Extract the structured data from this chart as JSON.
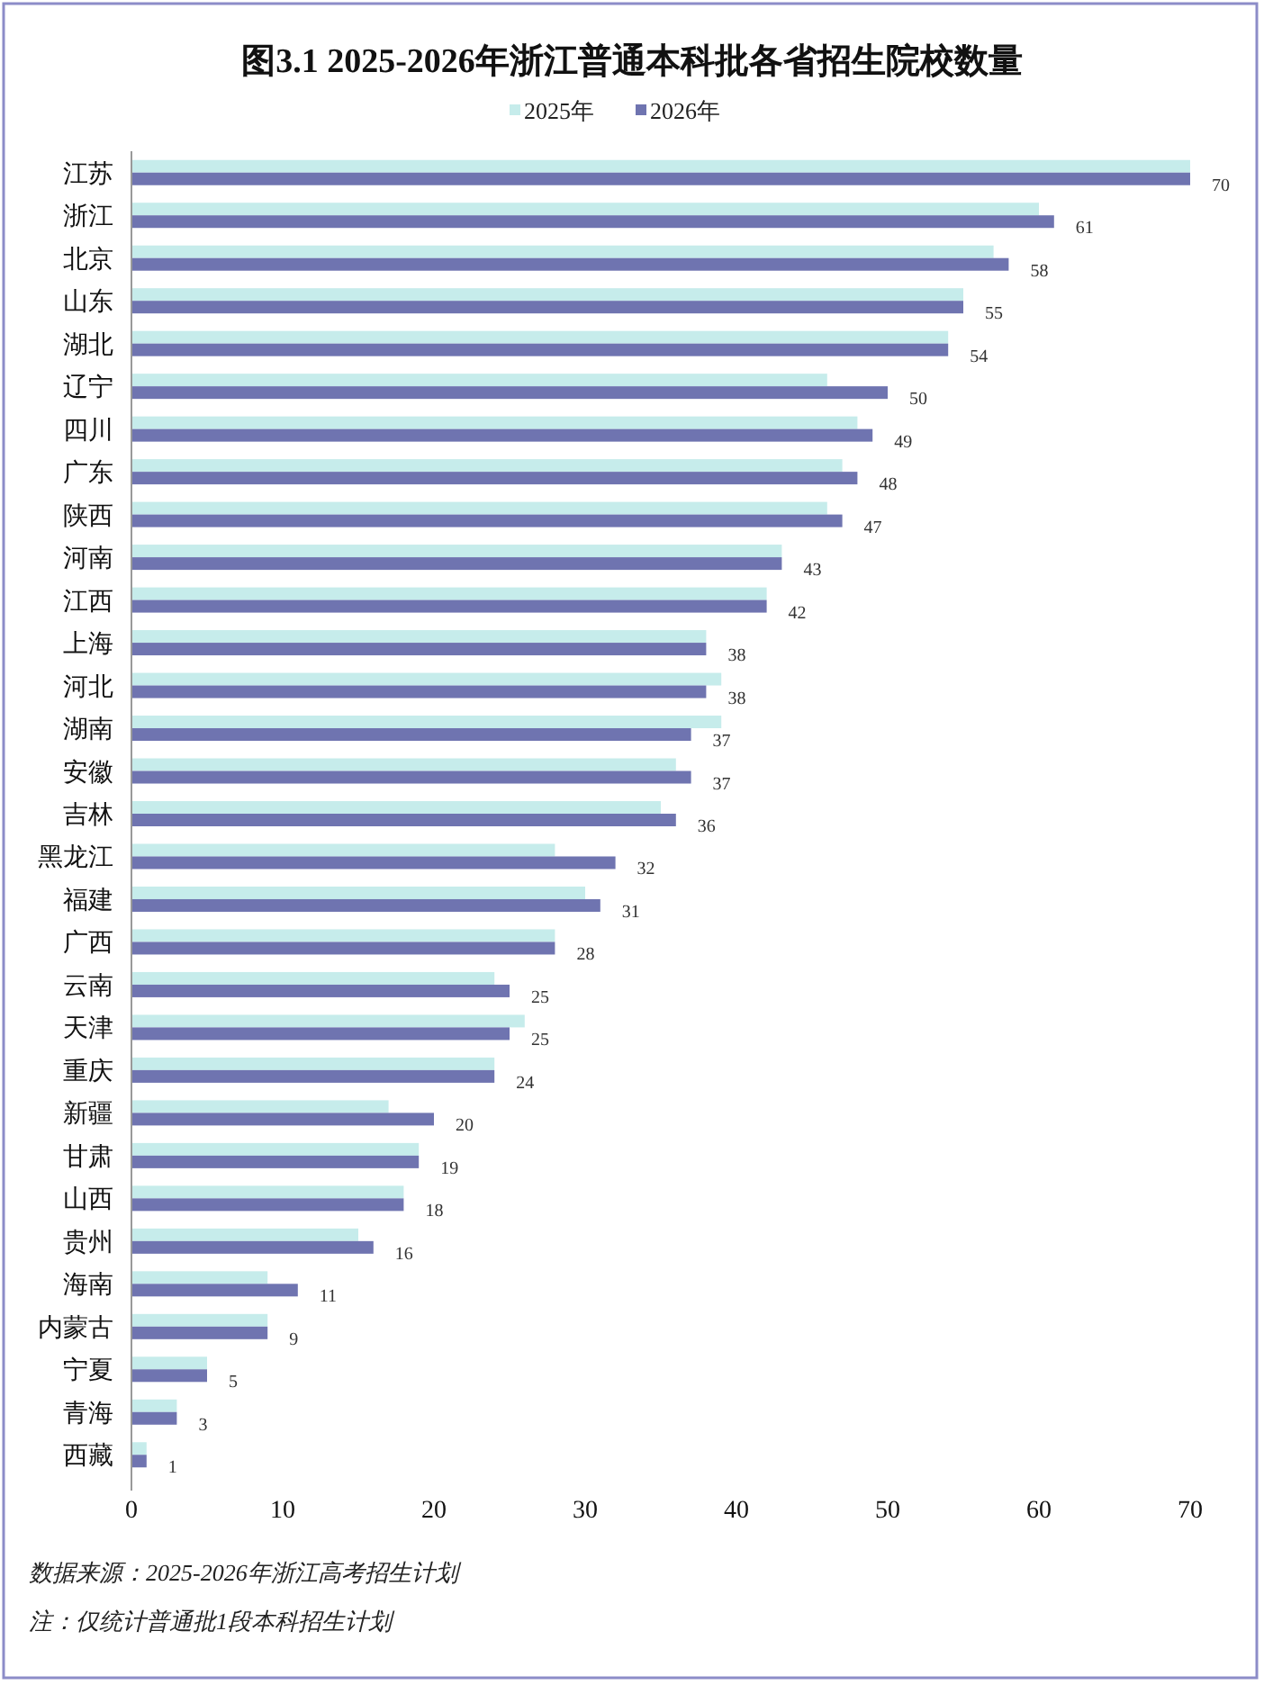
{
  "chart_data": {
    "type": "bar",
    "orientation": "horizontal",
    "title": "图3.1  2025-2026年浙江普通本科批各省招生院校数量",
    "categories": [
      "江苏",
      "浙江",
      "北京",
      "山东",
      "湖北",
      "辽宁",
      "四川",
      "广东",
      "陕西",
      "河南",
      "江西",
      "上海",
      "河北",
      "湖南",
      "安徽",
      "吉林",
      "黑龙江",
      "福建",
      "广西",
      "云南",
      "天津",
      "重庆",
      "新疆",
      "甘肃",
      "山西",
      "贵州",
      "海南",
      "内蒙古",
      "宁夏",
      "青海",
      "西藏"
    ],
    "series": [
      {
        "name": "2025年",
        "color": "#c6eceb",
        "values": [
          70,
          60,
          57,
          55,
          54,
          46,
          48,
          47,
          46,
          43,
          42,
          38,
          39,
          39,
          36,
          35,
          28,
          30,
          28,
          24,
          26,
          24,
          17,
          19,
          18,
          15,
          9,
          9,
          5,
          3,
          1
        ]
      },
      {
        "name": "2026年",
        "color": "#6f74b0",
        "values": [
          70,
          61,
          58,
          55,
          54,
          50,
          49,
          48,
          47,
          43,
          42,
          38,
          38,
          37,
          37,
          36,
          32,
          31,
          28,
          25,
          25,
          24,
          20,
          19,
          18,
          16,
          11,
          9,
          5,
          3,
          1
        ],
        "value_labels": [
          "70",
          "61",
          "58",
          "55",
          "54",
          "50",
          "49",
          "48",
          "47",
          "43",
          "42",
          "38",
          "38",
          "37",
          "37",
          "36",
          "32",
          "31",
          "28",
          "25",
          "25",
          "24",
          "20",
          "19",
          "18",
          "16",
          "11",
          "9",
          "5",
          "3",
          "1"
        ]
      }
    ],
    "xlim": [
      0,
      70
    ],
    "xticks": [
      0,
      10,
      20,
      30,
      40,
      50,
      60,
      70
    ],
    "grid": false,
    "legend": "top",
    "annotations": [
      "数据来源：2025-2026年浙江高考招生计划",
      "注：仅统计普通批1段本科招生计划"
    ]
  }
}
